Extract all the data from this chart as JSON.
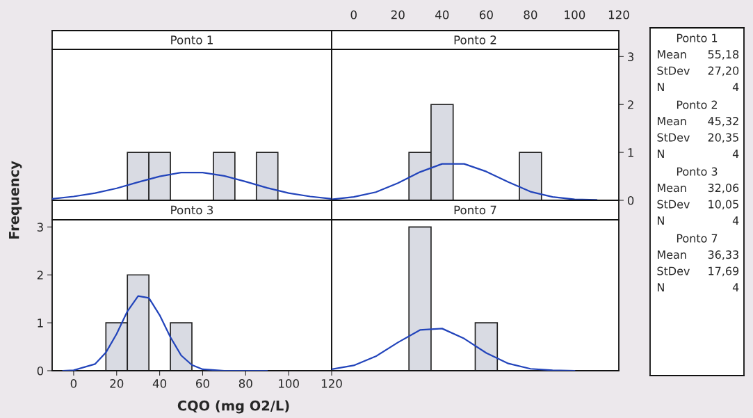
{
  "chart_data": [
    {
      "type": "histogram",
      "title": "Ponto 1",
      "bins": [
        15,
        25,
        35,
        45,
        55,
        65,
        75,
        85,
        95
      ],
      "values": [
        0,
        1,
        1,
        0,
        0,
        1,
        0,
        1
      ],
      "color": "#d9dbe3",
      "xlim": [
        -10,
        120
      ],
      "ylim": [
        0,
        3.15
      ],
      "xticks": [
        0,
        20,
        40,
        60,
        80,
        100,
        120
      ],
      "yticks": [
        0,
        1,
        2,
        3
      ],
      "tick_labels": false,
      "series": [
        {
          "type": "line",
          "color": "#2244bb",
          "x": [
            -10,
            0,
            10,
            20,
            30,
            40,
            50,
            60,
            70,
            80,
            90,
            100,
            110,
            120
          ],
          "values": [
            0.03,
            0.08,
            0.15,
            0.25,
            0.38,
            0.5,
            0.58,
            0.58,
            0.51,
            0.39,
            0.26,
            0.15,
            0.08,
            0.03
          ]
        }
      ],
      "annotations": [
        "Mean 55,18",
        "StDev 27,20",
        "N 4"
      ]
    },
    {
      "type": "histogram",
      "title": "Ponto 2",
      "bins": [
        15,
        25,
        35,
        45,
        55,
        65,
        75,
        85,
        95
      ],
      "values": [
        0,
        1,
        2,
        0,
        0,
        0,
        1,
        0
      ],
      "color": "#d9dbe3",
      "xlim": [
        -10,
        120
      ],
      "ylim": [
        0,
        3.15
      ],
      "xticks": [
        0,
        20,
        40,
        60,
        80,
        100,
        120
      ],
      "yticks": [
        0,
        1,
        2,
        3
      ],
      "series": [
        {
          "type": "line",
          "color": "#2244bb",
          "x": [
            -10,
            0,
            10,
            20,
            30,
            40,
            50,
            60,
            70,
            80,
            90,
            100,
            110
          ],
          "values": [
            0.02,
            0.07,
            0.17,
            0.36,
            0.59,
            0.76,
            0.76,
            0.6,
            0.38,
            0.18,
            0.07,
            0.02,
            0.01
          ]
        }
      ],
      "annotations": [
        "Mean 45,32",
        "StDev 20,35",
        "N 4"
      ]
    },
    {
      "type": "histogram",
      "title": "Ponto 3",
      "xlabel": "CQO (mg O2/L)",
      "ylabel": "Frequency",
      "bins": [
        15,
        25,
        35,
        45,
        55,
        65,
        75,
        85,
        95
      ],
      "values": [
        1,
        2,
        0,
        1,
        0,
        0,
        0,
        0
      ],
      "color": "#d9dbe3",
      "xlim": [
        -10,
        120
      ],
      "ylim": [
        0,
        3.15
      ],
      "xticks": [
        0,
        20,
        40,
        60,
        80,
        100,
        120
      ],
      "yticks": [
        0,
        1,
        2,
        3
      ],
      "series": [
        {
          "type": "line",
          "color": "#2244bb",
          "x": [
            -5,
            0,
            10,
            15,
            20,
            25,
            30,
            35,
            40,
            45,
            50,
            55,
            60,
            70,
            80,
            90
          ],
          "values": [
            0,
            0.01,
            0.14,
            0.38,
            0.77,
            1.24,
            1.56,
            1.52,
            1.16,
            0.7,
            0.32,
            0.12,
            0.03,
            0,
            0,
            0
          ]
        }
      ],
      "annotations": [
        "Mean 32,06",
        "StDev 10,05",
        "N 4"
      ]
    },
    {
      "type": "histogram",
      "title": "Ponto 7",
      "bins": [
        15,
        25,
        35,
        45,
        55,
        65,
        75,
        85,
        95
      ],
      "values": [
        0,
        3,
        0,
        0,
        1,
        0,
        0,
        0
      ],
      "color": "#d9dbe3",
      "xlim": [
        -10,
        120
      ],
      "ylim": [
        0,
        3.15
      ],
      "xticks": [
        0,
        20,
        40,
        60,
        80,
        100,
        120
      ],
      "yticks": [
        0,
        1,
        2,
        3
      ],
      "tick_labels": false,
      "series": [
        {
          "type": "line",
          "color": "#2244bb",
          "x": [
            -10,
            0,
            10,
            20,
            30,
            40,
            50,
            60,
            70,
            80,
            90,
            100
          ],
          "values": [
            0.03,
            0.11,
            0.3,
            0.59,
            0.85,
            0.88,
            0.67,
            0.37,
            0.15,
            0.04,
            0.01,
            0
          ]
        }
      ],
      "annotations": [
        "Mean 36,33",
        "StDev 17,69",
        "N 4"
      ]
    }
  ]
}
